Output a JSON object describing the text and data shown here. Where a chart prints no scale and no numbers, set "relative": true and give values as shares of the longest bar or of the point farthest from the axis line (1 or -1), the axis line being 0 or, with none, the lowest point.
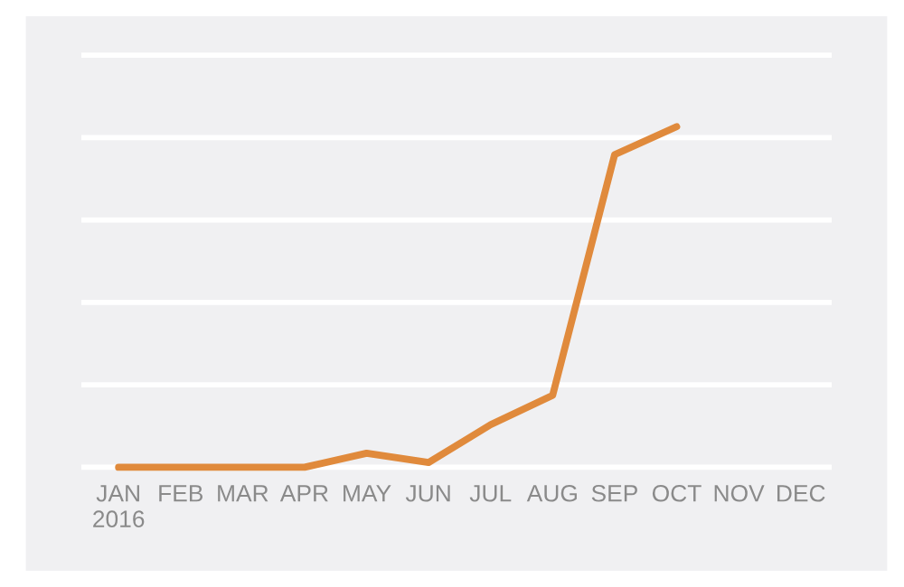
{
  "chart_data": {
    "type": "line",
    "relative": true,
    "categories": [
      "JAN\n2016",
      "FEB",
      "MAR",
      "APR",
      "MAY",
      "JUN",
      "JUL",
      "AUG",
      "SEP",
      "OCT",
      "NOV",
      "DEC"
    ],
    "series": [
      {
        "color": "#e08a3c",
        "values": [
          0,
          0,
          0,
          0,
          0.041,
          0.014,
          0.125,
          0.211,
          0.918,
          1,
          null,
          null
        ]
      }
    ],
    "grid": "y",
    "marker": "none",
    "line_style": "solid"
  }
}
